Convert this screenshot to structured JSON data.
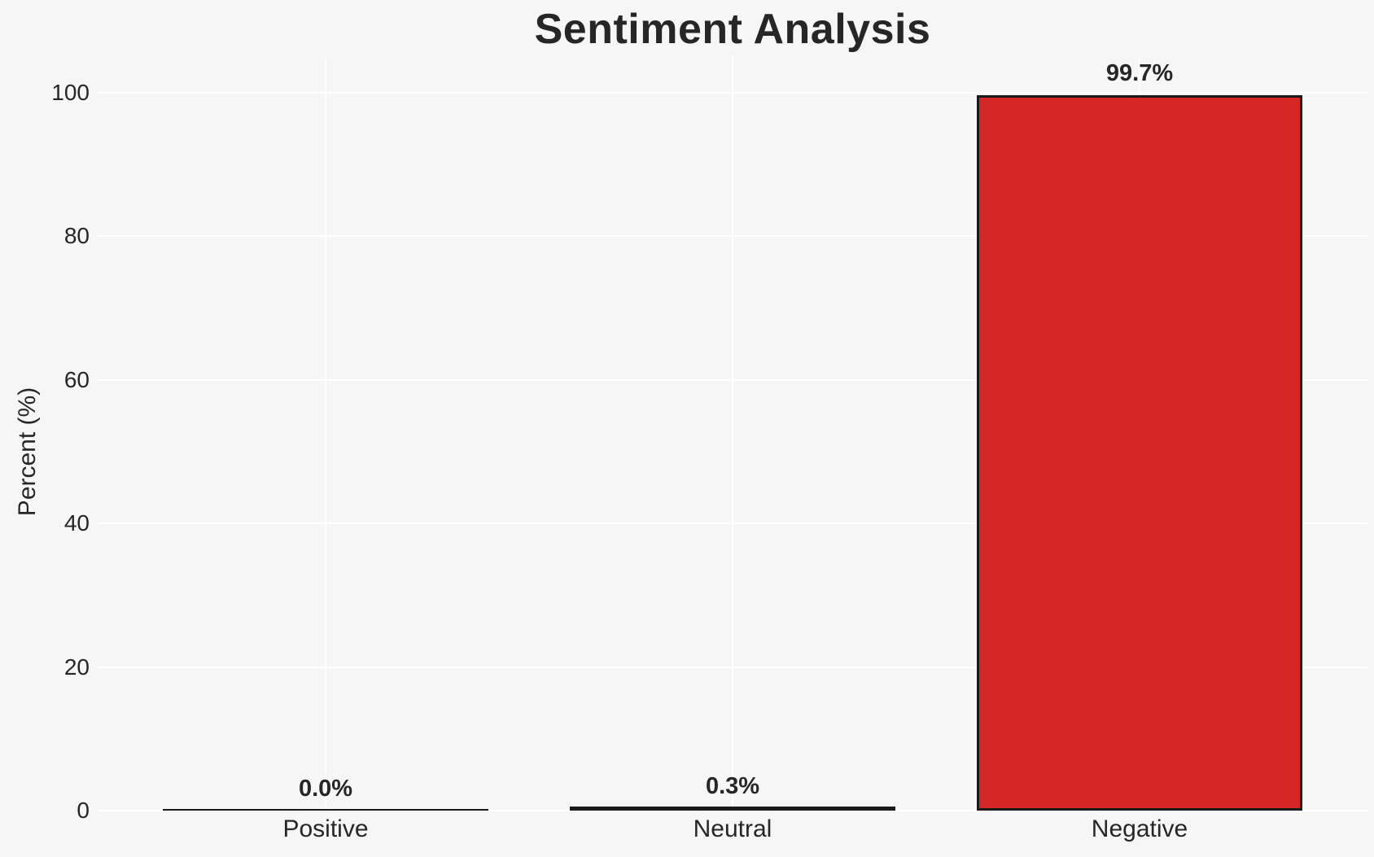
{
  "figure": {
    "background_color": "#f6f6f6",
    "gridline_color": "#ffffff",
    "text_color": "#262626"
  },
  "chart_data": {
    "type": "bar",
    "title": "Sentiment Analysis",
    "xlabel": "",
    "ylabel": "Percent (%)",
    "categories": [
      "Positive",
      "Neutral",
      "Negative"
    ],
    "values": [
      0.0,
      0.3,
      99.7
    ],
    "bar_value_labels": [
      "0.0%",
      "0.3%",
      "99.7%"
    ],
    "bar_fill_colors": [
      "#1a1a1a",
      "#1a1a1a",
      "#d62728"
    ],
    "bar_edge_color": "#1a1a1a",
    "ylim": [
      0,
      105
    ],
    "yticks": [
      0,
      20,
      40,
      60,
      80,
      100
    ],
    "grid": "horizontal and vertical white gridlines",
    "legend_position": "none"
  }
}
